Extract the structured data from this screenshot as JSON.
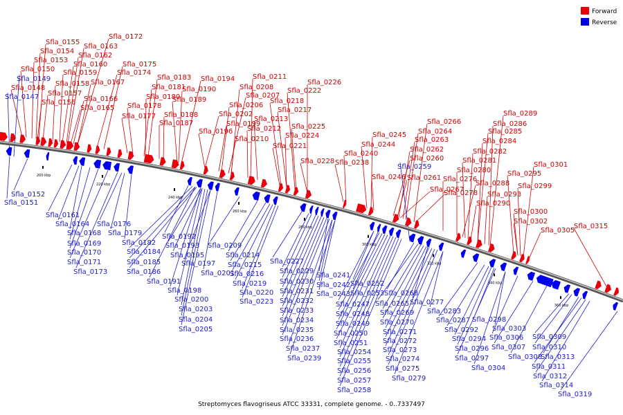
{
  "caption": "Streptomyces flavogriseus ATCC 33331, complete genome. - 0..7337497",
  "legend": [
    {
      "label": "Forward",
      "color": "#e8000b"
    },
    {
      "label": "Reverse",
      "color": "#0000ee"
    }
  ],
  "colors": {
    "forward": "#e8000b",
    "reverse": "#0000ee",
    "forward_text": "#cc0000",
    "reverse_text": "#1a1acc"
  },
  "ticks": [
    "200 kbp",
    "220 kbp",
    "240 kbp",
    "260 kbp",
    "280 kbp",
    "300 kbp",
    "320 kbp",
    "340 kbp",
    "360 kbp"
  ],
  "forward_labels": [
    "Sfla_0172",
    "Sfla_0155",
    "Sfla_0163",
    "Sfla_0154",
    "Sfla_0162",
    "Sfla_0153",
    "Sfla_0160",
    "Sfla_0175",
    "Sfla_0150",
    "Sfla_0159",
    "Sfla_0174",
    "Sfla_0158",
    "Sfla_0167",
    "Sfla_0183",
    "Sfla_0211",
    "Sfla_0194",
    "Sfla_0226",
    "Sfla_0148",
    "Sfla_0181",
    "Sfla_0208",
    "Sfla_0190",
    "Sfla_0157",
    "Sfla_0222",
    "Sfla_0166",
    "Sfla_0180",
    "Sfla_0207",
    "Sfla_0218",
    "Sfla_0189",
    "Sfla_0156",
    "Sfla_0178",
    "Sfla_0206",
    "Sfla_0165",
    "Sfla_0217",
    "Sfla_0202",
    "Sfla_0188",
    "Sfla_0213",
    "Sfla_0177",
    "Sfla_0199",
    "Sfla_0187",
    "Sfla_0225",
    "Sfla_0212",
    "Sfla_0196",
    "Sfla_0224",
    "Sfla_0210",
    "Sfla_0221",
    "Sfla_0289",
    "Sfla_0266",
    "Sfla_0286",
    "Sfla_0264",
    "Sfla_0285",
    "Sfla_0245",
    "Sfla_0263",
    "Sfla_0284",
    "Sfla_0244",
    "Sfla_0262",
    "Sfla_0282",
    "Sfla_0240",
    "Sfla_0260",
    "Sfla_0281",
    "Sfla_0238",
    "Sfla_0228",
    "Sfla_0280",
    "Sfla_0301",
    "Sfla_0276",
    "Sfla_0246",
    "Sfla_0261",
    "Sfla_0288",
    "Sfla_0295",
    "Sfla_0299",
    "Sfla_0267",
    "Sfla_0278",
    "Sfla_0293",
    "Sfla_0290",
    "Sfla_0300",
    "Sfla_0302",
    "Sfla_0315",
    "Sfla_0305"
  ],
  "reverse_labels": [
    "Sfla_0149",
    "Sfla_0147",
    "Sfla_0259",
    "Sfla_0152",
    "Sfla_0151",
    "Sfla_0161",
    "Sfla_0164",
    "Sfla_0176",
    "Sfla_0168",
    "Sfla_0179",
    "Sfla_0192",
    "Sfla_0169",
    "Sfla_0182",
    "Sfla_0193",
    "Sfla_0209",
    "Sfla_0170",
    "Sfla_0184",
    "Sfla_0195",
    "Sfla_0214",
    "Sfla_0171",
    "Sfla_0185",
    "Sfla_0197",
    "Sfla_0215",
    "Sfla_0227",
    "Sfla_0173",
    "Sfla_0186",
    "Sfla_0201",
    "Sfla_0216",
    "Sfla_0229",
    "Sfla_0241",
    "Sfla_0191",
    "Sfla_0219",
    "Sfla_0230",
    "Sfla_0242",
    "Sfla_0252",
    "Sfla_0198",
    "Sfla_0220",
    "Sfla_0231",
    "Sfla_0243",
    "Sfla_0253",
    "Sfla_0268",
    "Sfla_0200",
    "Sfla_0223",
    "Sfla_0232",
    "Sfla_0247",
    "Sfla_0265",
    "Sfla_0277",
    "Sfla_0203",
    "Sfla_0233",
    "Sfla_0248",
    "Sfla_0269",
    "Sfla_0283",
    "Sfla_0204",
    "Sfla_0234",
    "Sfla_0249",
    "Sfla_0270",
    "Sfla_0287",
    "Sfla_0298",
    "Sfla_0205",
    "Sfla_0235",
    "Sfla_0250",
    "Sfla_0271",
    "Sfla_0292",
    "Sfla_0303",
    "Sfla_0236",
    "Sfla_0251",
    "Sfla_0272",
    "Sfla_0294",
    "Sfla_0306",
    "Sfla_0309",
    "Sfla_0237",
    "Sfla_0254",
    "Sfla_0273",
    "Sfla_0296",
    "Sfla_0307",
    "Sfla_0310",
    "Sfla_0239",
    "Sfla_0255",
    "Sfla_0274",
    "Sfla_0297",
    "Sfla_0308",
    "Sfla_0313",
    "Sfla_0256",
    "Sfla_0275",
    "Sfla_0304",
    "Sfla_0311",
    "Sfla_0257",
    "Sfla_0279",
    "Sfla_0312",
    "Sfla_0314",
    "Sfla_0258",
    "Sfla_0319"
  ]
}
